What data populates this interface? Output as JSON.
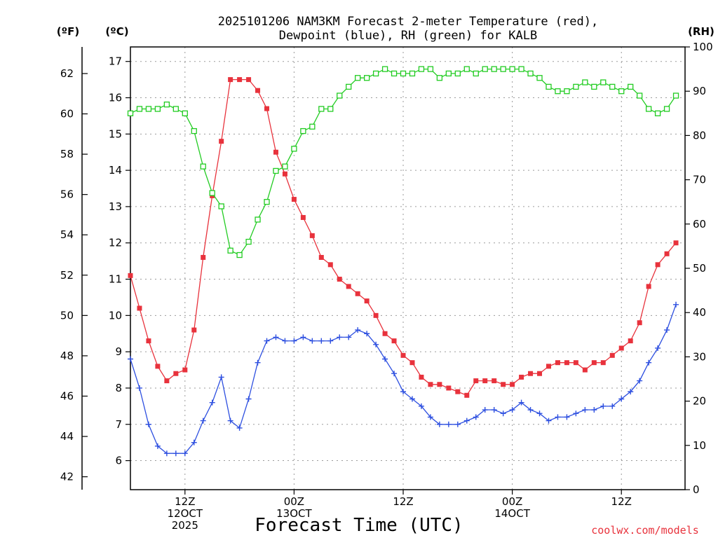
{
  "chart_data": {
    "type": "line",
    "title_lines": [
      "2025101206 NAM3KM Forecast 2-meter Temperature (red),",
      "Dewpoint (blue), RH (green) for KALB"
    ],
    "xlabel": "Forecast Time (UTC)",
    "credit": "coolwx.com/models",
    "unit_labels": {
      "f": "(ºF)",
      "c": "(ºC)",
      "rh": "(RH)"
    },
    "x_range_hours": [
      0,
      61
    ],
    "x_ticks": [
      {
        "hour": 6,
        "lines": [
          "12Z",
          "12OCT",
          "2025"
        ]
      },
      {
        "hour": 18,
        "lines": [
          "00Z",
          "13OCT"
        ]
      },
      {
        "hour": 30,
        "lines": [
          "12Z"
        ]
      },
      {
        "hour": 42,
        "lines": [
          "00Z",
          "14OCT"
        ]
      },
      {
        "hour": 54,
        "lines": [
          "12Z"
        ]
      }
    ],
    "y_left_c": {
      "range": [
        5.2,
        17.4
      ],
      "ticks": [
        6,
        7,
        8,
        9,
        10,
        11,
        12,
        13,
        14,
        15,
        16,
        17
      ]
    },
    "y_left_f": {
      "ticks": [
        42,
        44,
        46,
        48,
        50,
        52,
        54,
        56,
        58,
        60,
        62
      ]
    },
    "y_right_rh": {
      "range": [
        0,
        100
      ],
      "ticks": [
        0,
        10,
        20,
        30,
        40,
        50,
        60,
        70,
        80,
        90,
        100
      ]
    },
    "series": [
      {
        "name": "Temperature (°C)",
        "axis": "c",
        "color": "#e8323c",
        "marker": "filled-square",
        "values": [
          11.1,
          10.2,
          9.3,
          8.6,
          8.2,
          8.4,
          8.5,
          9.6,
          11.6,
          13.3,
          14.8,
          16.5,
          16.5,
          16.5,
          16.2,
          15.7,
          14.5,
          13.9,
          13.2,
          12.7,
          12.2,
          11.6,
          11.4,
          11.0,
          10.8,
          10.6,
          10.4,
          10.0,
          9.5,
          9.3,
          8.9,
          8.7,
          8.3,
          8.1,
          8.1,
          8.0,
          7.9,
          7.8,
          8.2,
          8.2,
          8.2,
          8.1,
          8.1,
          8.3,
          8.4,
          8.4,
          8.6,
          8.7,
          8.7,
          8.7,
          8.5,
          8.7,
          8.7,
          8.9,
          9.1,
          9.3,
          9.8,
          10.8,
          11.4,
          11.7,
          12.0
        ]
      },
      {
        "name": "Dewpoint (°C)",
        "axis": "c",
        "color": "#2d4fe0",
        "marker": "plus",
        "values": [
          8.8,
          8.0,
          7.0,
          6.4,
          6.2,
          6.2,
          6.2,
          6.5,
          7.1,
          7.6,
          8.3,
          7.1,
          6.9,
          7.7,
          8.7,
          9.3,
          9.4,
          9.3,
          9.3,
          9.4,
          9.3,
          9.3,
          9.3,
          9.4,
          9.4,
          9.6,
          9.5,
          9.2,
          8.8,
          8.4,
          7.9,
          7.7,
          7.5,
          7.2,
          7.0,
          7.0,
          7.0,
          7.1,
          7.2,
          7.4,
          7.4,
          7.3,
          7.4,
          7.6,
          7.4,
          7.3,
          7.1,
          7.2,
          7.2,
          7.3,
          7.4,
          7.4,
          7.5,
          7.5,
          7.7,
          7.9,
          8.2,
          8.7,
          9.1,
          9.6,
          10.3
        ]
      },
      {
        "name": "RH (%)",
        "axis": "rh",
        "color": "#22cc22",
        "marker": "open-square",
        "values": [
          85,
          86,
          86,
          86,
          87,
          86,
          85,
          81,
          73,
          67,
          64,
          54,
          53,
          56,
          61,
          65,
          72,
          73,
          77,
          81,
          82,
          86,
          86,
          89,
          91,
          93,
          93,
          94,
          95,
          94,
          94,
          94,
          95,
          95,
          93,
          94,
          94,
          95,
          94,
          95,
          95,
          95,
          95,
          95,
          94,
          93,
          91,
          90,
          90,
          91,
          92,
          91,
          92,
          91,
          90,
          91,
          89,
          86,
          85,
          86,
          89
        ]
      }
    ]
  }
}
